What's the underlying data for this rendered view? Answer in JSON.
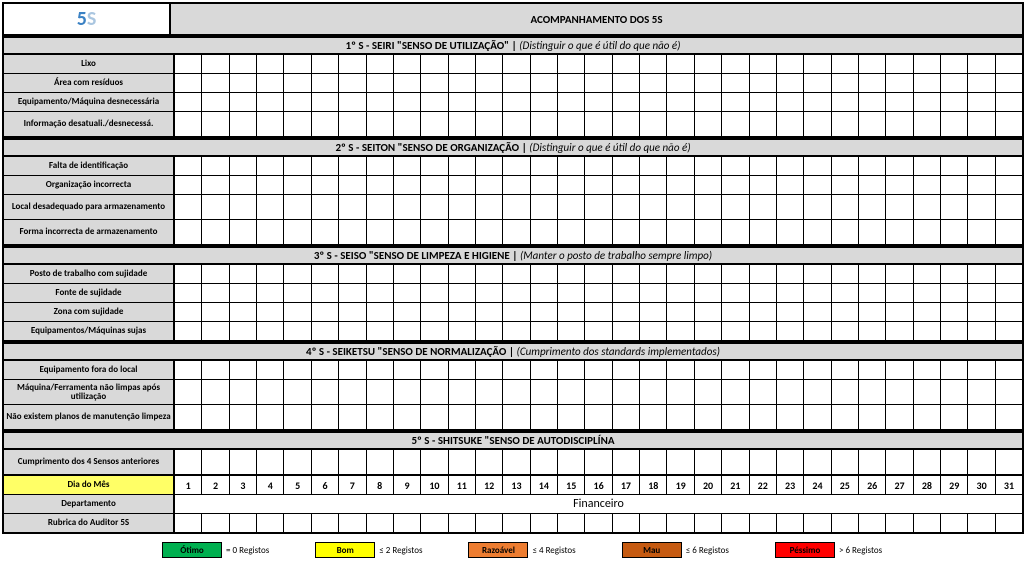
{
  "logo": "5S",
  "main_title": "ACOMPANHAMENTO DOS 5S",
  "num_days": 31,
  "sections": [
    {
      "header_bold": "1º S - SEIRI \"SENSO DE UTILIZAÇÃO\" | ",
      "header_italic": "(Distinguir o que é útil do que não é)",
      "rows": [
        "Lixo",
        "Área com resíduos",
        "Equipamento/Máquina desnecessária",
        "Informação desatuali./desnecessá."
      ],
      "tall": [
        false,
        false,
        false,
        true
      ]
    },
    {
      "header_bold": "2º S - SEITON \"SENSO DE ORGANIZAÇÃO | ",
      "header_italic": "(Distinguir o que é útil do que não é)",
      "rows": [
        "Falta de identificação",
        "Organização incorrecta",
        "Local desadequado para armazenamento",
        "Forma incorrecta de armazenamento"
      ],
      "tall": [
        false,
        false,
        true,
        true
      ]
    },
    {
      "header_bold": "3º S - SEISO \"SENSO DE LIMPEZA E HIGIENE | ",
      "header_italic": "(Manter o posto de trabalho sempre limpo)",
      "rows": [
        "Posto de trabalho com sujidade",
        "Fonte de sujidade",
        "Zona com sujidade",
        "Equipamentos/Máquinas sujas"
      ],
      "tall": [
        false,
        false,
        false,
        false
      ]
    },
    {
      "header_bold": "4º S - SEIKETSU \"SENSO DE NORMALIZAÇÃO | ",
      "header_italic": "(Cumprimento dos standards implementados)",
      "rows": [
        "Equipamento fora do local",
        "Máquina/Ferramenta não limpas após utilização",
        "Não existem planos de manutenção limpeza"
      ],
      "tall": [
        false,
        true,
        true
      ]
    },
    {
      "header_bold": "5º S - SHITSUKE \"SENSO DE AUTODISCIPLÍNA",
      "header_italic": "",
      "rows": [
        "Cumprimento dos 4 Sensos anteriores"
      ],
      "tall": [
        true
      ]
    }
  ],
  "footer_rows": {
    "dia_label": "Dia do Mês",
    "dept_label": "Departamento",
    "dept_value": "Financeiro",
    "rubrica_label": "Rubrica do Auditor 5S"
  },
  "legend": [
    {
      "label": "Ótimo",
      "color": "#00b050",
      "text": "= 0 Registos"
    },
    {
      "label": "Bom",
      "color": "#ffff00",
      "text": "≤ 2 Registos"
    },
    {
      "label": "Razoável",
      "color": "#ed7d31",
      "text": "≤ 4 Registos"
    },
    {
      "label": "Mau",
      "color": "#c55a11",
      "text": "≤ 6 Registos"
    },
    {
      "label": "Péssimo",
      "color": "#ff0000",
      "text": "> 6 Registos"
    }
  ],
  "colors": {
    "header_bg": "#d9d9d9",
    "dia_bg": "#ffff66",
    "border": "#000000"
  }
}
